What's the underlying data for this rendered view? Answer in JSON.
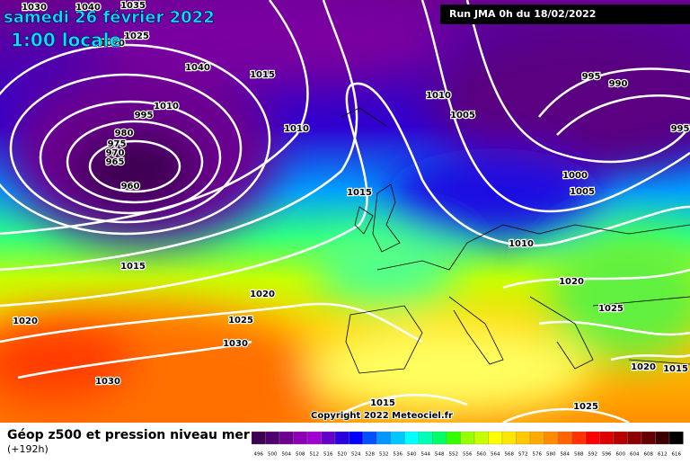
{
  "header": {
    "title": "samedi 26 février 2022",
    "subtitle": "1:00 locale",
    "run": "Run JMA 0h du 18/02/2022"
  },
  "map": {
    "isobar_labels": [
      1030,
      1040,
      1035,
      1025,
      1020,
      1040,
      1015,
      1010,
      995,
      980,
      975,
      970,
      965,
      960,
      1010,
      1015,
      1010,
      1005,
      995,
      990,
      995,
      1000,
      1005,
      1010,
      1015,
      1020,
      1020,
      1025,
      1030,
      1030,
      1020,
      1025,
      1020,
      1015,
      1015,
      1025
    ],
    "copyright": "Copyright 2022 Meteociel.fr"
  },
  "legend": {
    "title": "Géop z500 et pression niveau mer",
    "lead": "(+192h)",
    "scale": [
      496,
      500,
      504,
      508,
      512,
      516,
      520,
      524,
      528,
      532,
      536,
      540,
      544,
      548,
      552,
      556,
      560,
      564,
      568,
      572,
      576,
      580,
      584,
      588,
      592,
      596,
      600,
      604,
      608,
      612,
      616
    ],
    "scale_colors": [
      "#3c0050",
      "#50006e",
      "#6e0090",
      "#8c00b4",
      "#a000d2",
      "#6400c8",
      "#2800dc",
      "#0000ff",
      "#0050ff",
      "#0096ff",
      "#00c8ff",
      "#00ffff",
      "#00ffb4",
      "#00ff64",
      "#32ff00",
      "#96ff00",
      "#c8ff00",
      "#ffff00",
      "#ffe600",
      "#ffc800",
      "#ffaa00",
      "#ff8c00",
      "#ff6400",
      "#ff3200",
      "#ff0000",
      "#dc0000",
      "#b40000",
      "#8c0000",
      "#640000",
      "#3c0000",
      "#000000"
    ]
  }
}
